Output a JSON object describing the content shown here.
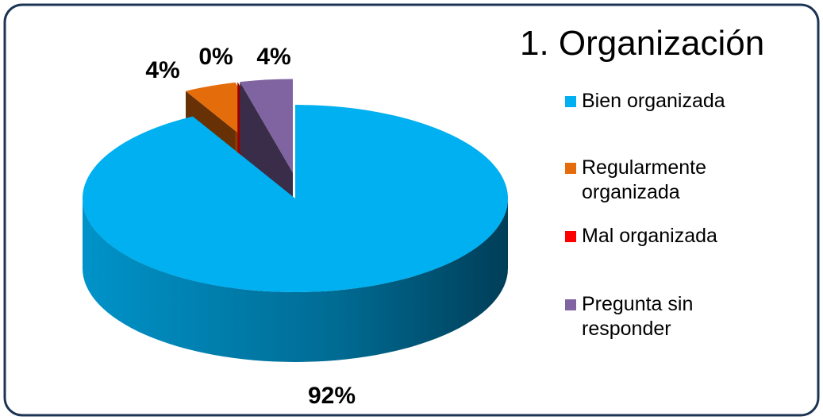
{
  "chart_data": {
    "type": "pie",
    "title": "1. Organización",
    "categories": [
      "Bien organizada",
      "Regularmente organizada",
      "Mal organizada",
      "Pregunta sin responder"
    ],
    "values": [
      92,
      4,
      0,
      4
    ],
    "value_labels": [
      "92%",
      "4%",
      "0%",
      "4%"
    ],
    "colors": [
      "#00b0f0",
      "#e46c0a",
      "#ff0000",
      "#8064a2"
    ],
    "legend": "right"
  }
}
